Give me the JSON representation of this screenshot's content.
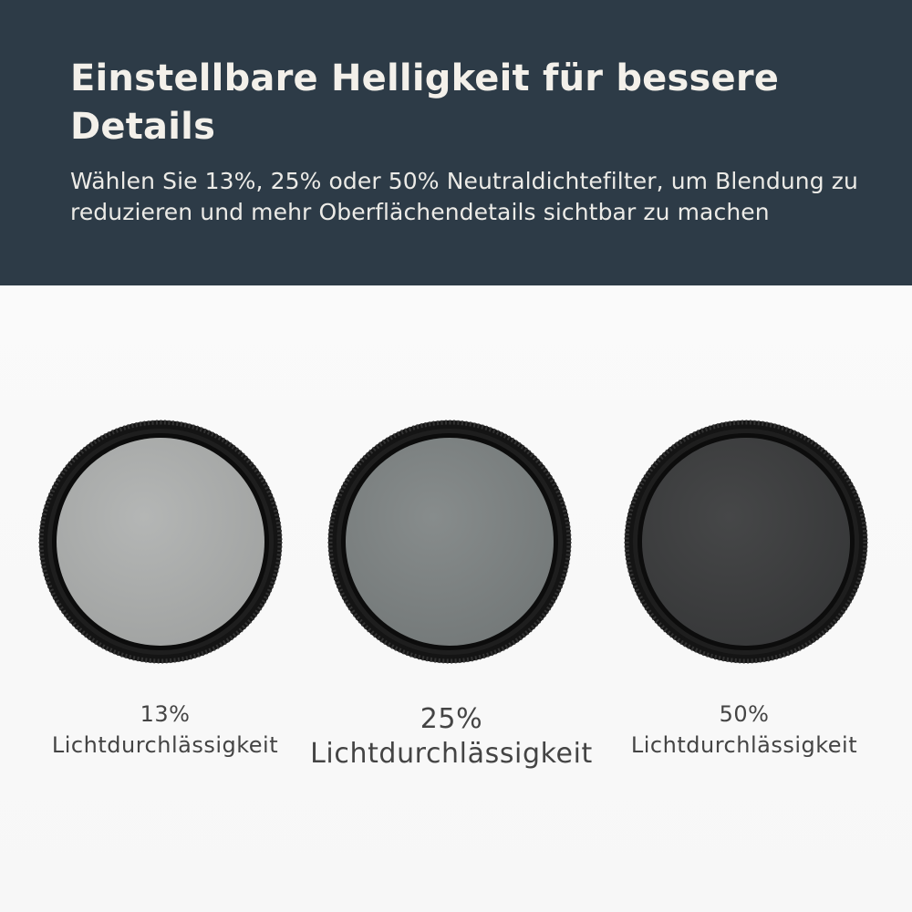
{
  "header": {
    "headline": "Einstellbare Helligkeit für bessere Details",
    "subheadline": "Wählen Sie 13%, 25% oder 50% Neutraldichtefilter, um Blendung zu reduzieren und mehr Oberflächendetails sichtbar zu machen",
    "background_color": "#2d3b47",
    "text_color": "#f3f0ea"
  },
  "filters": [
    {
      "percentage": "13%",
      "label": "Lichtdurchlässigkeit",
      "glass_color": "#a9abaa"
    },
    {
      "percentage": "25%",
      "label": "Lichtdurchlässigkeit",
      "glass_color": "#7c8181"
    },
    {
      "percentage": "50%",
      "label": "Lichtdurchlässigkeit",
      "glass_color": "#3e3f40"
    }
  ],
  "frame_color": "#161616"
}
